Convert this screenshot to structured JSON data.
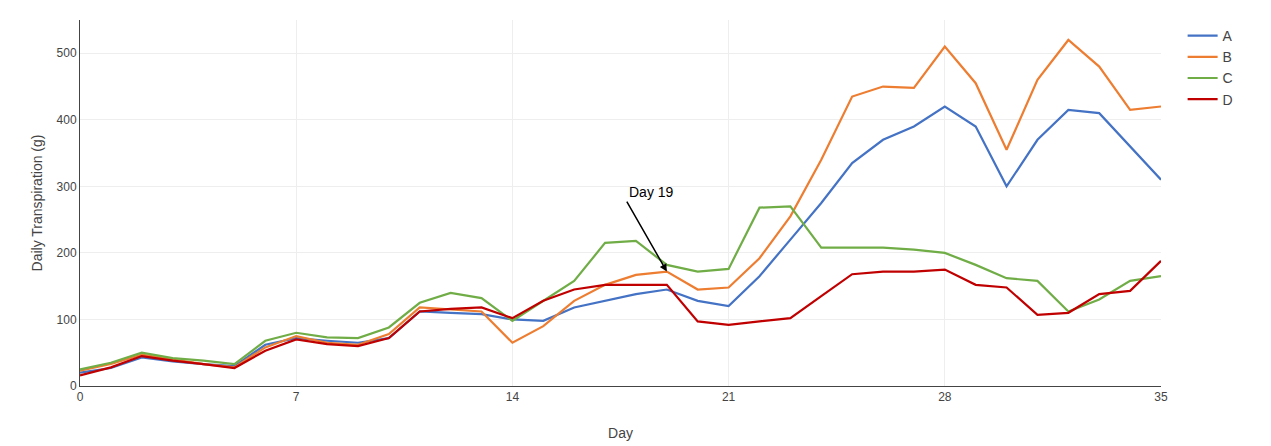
{
  "chart_data": {
    "type": "line",
    "x": [
      0,
      1,
      2,
      3,
      4,
      5,
      6,
      7,
      8,
      9,
      10,
      11,
      12,
      13,
      14,
      15,
      16,
      17,
      18,
      19,
      20,
      21,
      22,
      23,
      24,
      25,
      26,
      27,
      28,
      29,
      30,
      31,
      32,
      33,
      34,
      35
    ],
    "series": [
      {
        "name": "A",
        "color": "#4472C4",
        "values": [
          20,
          27,
          43,
          37,
          33,
          30,
          62,
          72,
          68,
          65,
          72,
          112,
          110,
          108,
          100,
          98,
          118,
          128,
          138,
          145,
          128,
          120,
          165,
          220,
          275,
          335,
          370,
          390,
          420,
          390,
          300,
          370,
          415,
          410,
          360,
          310
        ]
      },
      {
        "name": "B",
        "color": "#ED7D31",
        "values": [
          23,
          33,
          47,
          40,
          33,
          28,
          58,
          75,
          65,
          62,
          78,
          118,
          115,
          112,
          65,
          90,
          128,
          152,
          167,
          172,
          145,
          148,
          192,
          255,
          340,
          435,
          450,
          448,
          510,
          455,
          355,
          460,
          520,
          480,
          415,
          420
        ]
      },
      {
        "name": "C",
        "color": "#70AD47",
        "values": [
          25,
          35,
          50,
          42,
          38,
          33,
          68,
          80,
          73,
          72,
          88,
          125,
          140,
          132,
          98,
          128,
          158,
          215,
          218,
          182,
          172,
          176,
          268,
          270,
          208,
          208,
          208,
          205,
          200,
          182,
          162,
          158,
          112,
          130,
          158,
          165
        ]
      },
      {
        "name": "D",
        "color": "#C00000",
        "values": [
          16,
          28,
          45,
          38,
          33,
          27,
          53,
          70,
          63,
          60,
          72,
          112,
          116,
          118,
          102,
          128,
          145,
          152,
          152,
          152,
          97,
          92,
          97,
          102,
          135,
          168,
          172,
          172,
          175,
          152,
          148,
          107,
          110,
          138,
          143,
          188
        ]
      }
    ],
    "xlabel": "Day",
    "ylabel": "Daily Transpiration (g)",
    "xlim": [
      0,
      35
    ],
    "ylim": [
      0,
      550
    ],
    "xticks": [
      0,
      7,
      14,
      21,
      28,
      35
    ],
    "yticks": [
      0,
      100,
      200,
      300,
      400,
      500
    ],
    "grid": true,
    "legend": "right",
    "annotations": [
      {
        "text": "Day 19",
        "x": 19,
        "y": 172
      }
    ]
  }
}
